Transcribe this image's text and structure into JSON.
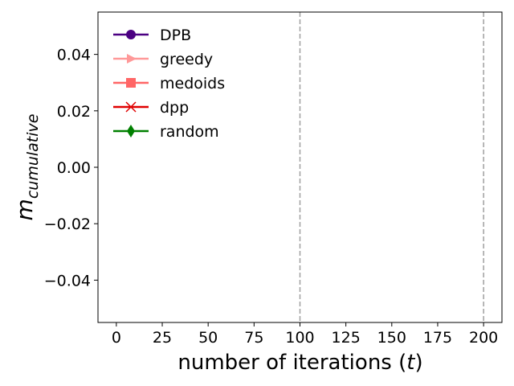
{
  "chart_data": {
    "type": "line",
    "xlabel_main": "number of iterations (",
    "xlabel_var": "t",
    "xlabel_close": ")",
    "ylabel_main": "m",
    "ylabel_sub": "cumulative",
    "xlim": [
      -10,
      210
    ],
    "ylim": [
      -0.055,
      0.055
    ],
    "xticks": [
      0,
      25,
      50,
      75,
      100,
      125,
      150,
      175,
      200
    ],
    "xtick_labels": [
      "0",
      "25",
      "50",
      "75",
      "100",
      "125",
      "150",
      "175",
      "200"
    ],
    "yticks": [
      0.04,
      0.02,
      0.0,
      -0.02,
      -0.04
    ],
    "ytick_labels": [
      "0.04",
      "0.02",
      "0.00",
      "−0.02",
      "−0.04"
    ],
    "vlines": [
      100,
      200
    ],
    "vline_color": "#a0a0a0",
    "grid": false,
    "legend_position": "top-left",
    "series": [
      {
        "name": "DPB",
        "color": "#4b0082",
        "marker": "circle",
        "values": []
      },
      {
        "name": "greedy",
        "color": "#ff9999",
        "marker": "triangle-right",
        "values": []
      },
      {
        "name": "medoids",
        "color": "#ff6666",
        "marker": "square",
        "values": []
      },
      {
        "name": "dpp",
        "color": "#e00000",
        "marker": "x",
        "values": []
      },
      {
        "name": "random",
        "color": "#008000",
        "marker": "diamond",
        "values": []
      }
    ]
  }
}
